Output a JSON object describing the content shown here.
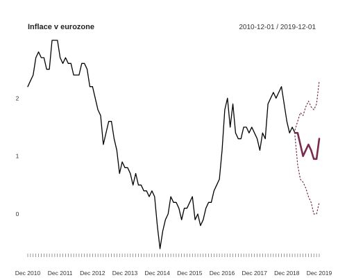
{
  "chart_data": {
    "type": "line",
    "title": "Inflace v eurozone",
    "subtitle": "2010-12-01 / 2019-12-01",
    "xlabel": "",
    "ylabel": "",
    "x_tick_labels": [
      "Dec 2010",
      "Dec 2011",
      "Dec 2012",
      "Dec 2013",
      "Dec 2014",
      "Dec 2015",
      "Dec 2016",
      "Dec 2017",
      "Dec 2018",
      "Dec 2019"
    ],
    "y_ticks": [
      0,
      1,
      2
    ],
    "ylim": [
      -0.6,
      3.0
    ],
    "xlim": [
      "2010-12",
      "2019-12"
    ],
    "grid": false,
    "series": [
      {
        "kind": "actual",
        "color": "#000000",
        "points": [
          [
            "2010-12",
            2.2
          ],
          [
            "2011-01",
            2.3
          ],
          [
            "2011-02",
            2.4
          ],
          [
            "2011-03",
            2.7
          ],
          [
            "2011-04",
            2.8
          ],
          [
            "2011-05",
            2.7
          ],
          [
            "2011-06",
            2.7
          ],
          [
            "2011-07",
            2.5
          ],
          [
            "2011-08",
            2.5
          ],
          [
            "2011-09",
            3.0
          ],
          [
            "2011-10",
            3.0
          ],
          [
            "2011-11",
            3.0
          ],
          [
            "2011-12",
            2.7
          ],
          [
            "2012-01",
            2.6
          ],
          [
            "2012-02",
            2.7
          ],
          [
            "2012-03",
            2.6
          ],
          [
            "2012-04",
            2.6
          ],
          [
            "2012-05",
            2.4
          ],
          [
            "2012-06",
            2.4
          ],
          [
            "2012-07",
            2.4
          ],
          [
            "2012-08",
            2.6
          ],
          [
            "2012-09",
            2.6
          ],
          [
            "2012-10",
            2.5
          ],
          [
            "2012-11",
            2.2
          ],
          [
            "2012-12",
            2.2
          ],
          [
            "2013-01",
            2.0
          ],
          [
            "2013-02",
            1.8
          ],
          [
            "2013-03",
            1.7
          ],
          [
            "2013-04",
            1.2
          ],
          [
            "2013-05",
            1.4
          ],
          [
            "2013-06",
            1.6
          ],
          [
            "2013-07",
            1.6
          ],
          [
            "2013-08",
            1.3
          ],
          [
            "2013-09",
            1.1
          ],
          [
            "2013-10",
            0.7
          ],
          [
            "2013-11",
            0.9
          ],
          [
            "2013-12",
            0.8
          ],
          [
            "2014-01",
            0.8
          ],
          [
            "2014-02",
            0.7
          ],
          [
            "2014-03",
            0.5
          ],
          [
            "2014-04",
            0.7
          ],
          [
            "2014-05",
            0.5
          ],
          [
            "2014-06",
            0.5
          ],
          [
            "2014-07",
            0.4
          ],
          [
            "2014-08",
            0.4
          ],
          [
            "2014-09",
            0.3
          ],
          [
            "2014-10",
            0.4
          ],
          [
            "2014-11",
            0.3
          ],
          [
            "2014-12",
            -0.2
          ],
          [
            "2015-01",
            -0.6
          ],
          [
            "2015-02",
            -0.3
          ],
          [
            "2015-03",
            -0.1
          ],
          [
            "2015-04",
            0.0
          ],
          [
            "2015-05",
            0.3
          ],
          [
            "2015-06",
            0.2
          ],
          [
            "2015-07",
            0.2
          ],
          [
            "2015-08",
            0.1
          ],
          [
            "2015-09",
            -0.1
          ],
          [
            "2015-10",
            0.1
          ],
          [
            "2015-11",
            0.1
          ],
          [
            "2015-12",
            0.2
          ],
          [
            "2016-01",
            0.3
          ],
          [
            "2016-02",
            -0.1
          ],
          [
            "2016-03",
            0.0
          ],
          [
            "2016-04",
            -0.2
          ],
          [
            "2016-05",
            -0.1
          ],
          [
            "2016-06",
            0.1
          ],
          [
            "2016-07",
            0.2
          ],
          [
            "2016-08",
            0.2
          ],
          [
            "2016-09",
            0.4
          ],
          [
            "2016-10",
            0.5
          ],
          [
            "2016-11",
            0.6
          ],
          [
            "2016-12",
            1.1
          ],
          [
            "2017-01",
            1.8
          ],
          [
            "2017-02",
            2.0
          ],
          [
            "2017-03",
            1.5
          ],
          [
            "2017-04",
            1.9
          ],
          [
            "2017-05",
            1.4
          ],
          [
            "2017-06",
            1.3
          ],
          [
            "2017-07",
            1.3
          ],
          [
            "2017-08",
            1.5
          ],
          [
            "2017-09",
            1.5
          ],
          [
            "2017-10",
            1.4
          ],
          [
            "2017-11",
            1.5
          ],
          [
            "2017-12",
            1.4
          ],
          [
            "2018-01",
            1.3
          ],
          [
            "2018-02",
            1.1
          ],
          [
            "2018-03",
            1.4
          ],
          [
            "2018-04",
            1.3
          ],
          [
            "2018-05",
            1.9
          ],
          [
            "2018-06",
            2.0
          ],
          [
            "2018-07",
            2.1
          ],
          [
            "2018-08",
            2.0
          ],
          [
            "2018-09",
            2.1
          ],
          [
            "2018-10",
            2.2
          ],
          [
            "2018-11",
            1.9
          ],
          [
            "2018-12",
            1.6
          ],
          [
            "2019-01",
            1.4
          ],
          [
            "2019-02",
            1.5
          ],
          [
            "2019-03",
            1.4
          ]
        ]
      },
      {
        "kind": "forecast",
        "color": "#7a2a4e",
        "points": [
          [
            "2019-03",
            1.4
          ],
          [
            "2019-04",
            1.4
          ],
          [
            "2019-05",
            1.2
          ],
          [
            "2019-06",
            1.0
          ],
          [
            "2019-07",
            1.1
          ],
          [
            "2019-08",
            1.2
          ],
          [
            "2019-09",
            1.1
          ],
          [
            "2019-10",
            0.95
          ],
          [
            "2019-11",
            0.95
          ],
          [
            "2019-12",
            1.3
          ]
        ]
      },
      {
        "kind": "upper-bound",
        "color": "#7a2a4e",
        "points": [
          [
            "2019-03",
            1.45
          ],
          [
            "2019-04",
            1.6
          ],
          [
            "2019-05",
            1.75
          ],
          [
            "2019-06",
            1.7
          ],
          [
            "2019-07",
            1.85
          ],
          [
            "2019-08",
            1.95
          ],
          [
            "2019-09",
            1.85
          ],
          [
            "2019-10",
            1.8
          ],
          [
            "2019-11",
            1.9
          ],
          [
            "2019-12",
            2.3
          ]
        ]
      },
      {
        "kind": "lower-bound",
        "color": "#7a2a4e",
        "points": [
          [
            "2019-03",
            1.35
          ],
          [
            "2019-04",
            0.85
          ],
          [
            "2019-05",
            0.6
          ],
          [
            "2019-06",
            0.55
          ],
          [
            "2019-07",
            0.45
          ],
          [
            "2019-08",
            0.3
          ],
          [
            "2019-09",
            0.2
          ],
          [
            "2019-10",
            0.0
          ],
          [
            "2019-11",
            0.0
          ],
          [
            "2019-12",
            0.2
          ]
        ]
      }
    ]
  }
}
